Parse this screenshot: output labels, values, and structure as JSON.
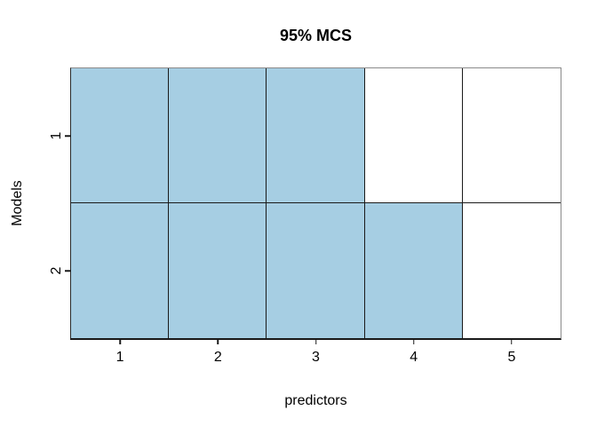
{
  "chart_data": {
    "type": "heatmap",
    "title": "95% MCS",
    "xlabel": "predictors",
    "ylabel": "Models",
    "x_ticks": [
      "1",
      "2",
      "3",
      "4",
      "5"
    ],
    "y_ticks": [
      "1",
      "2"
    ],
    "rows": [
      {
        "model": "1",
        "included": [
          1,
          1,
          1,
          0,
          0
        ]
      },
      {
        "model": "2",
        "included": [
          1,
          1,
          1,
          1,
          0
        ]
      }
    ],
    "x_range": [
      0.5,
      5.5
    ],
    "y_range": [
      0.5,
      2.5
    ],
    "fill_color": "#A6CEE3",
    "empty_color": "#FFFFFF",
    "grid_line_color": "#1a1a1a",
    "legend": "none"
  }
}
